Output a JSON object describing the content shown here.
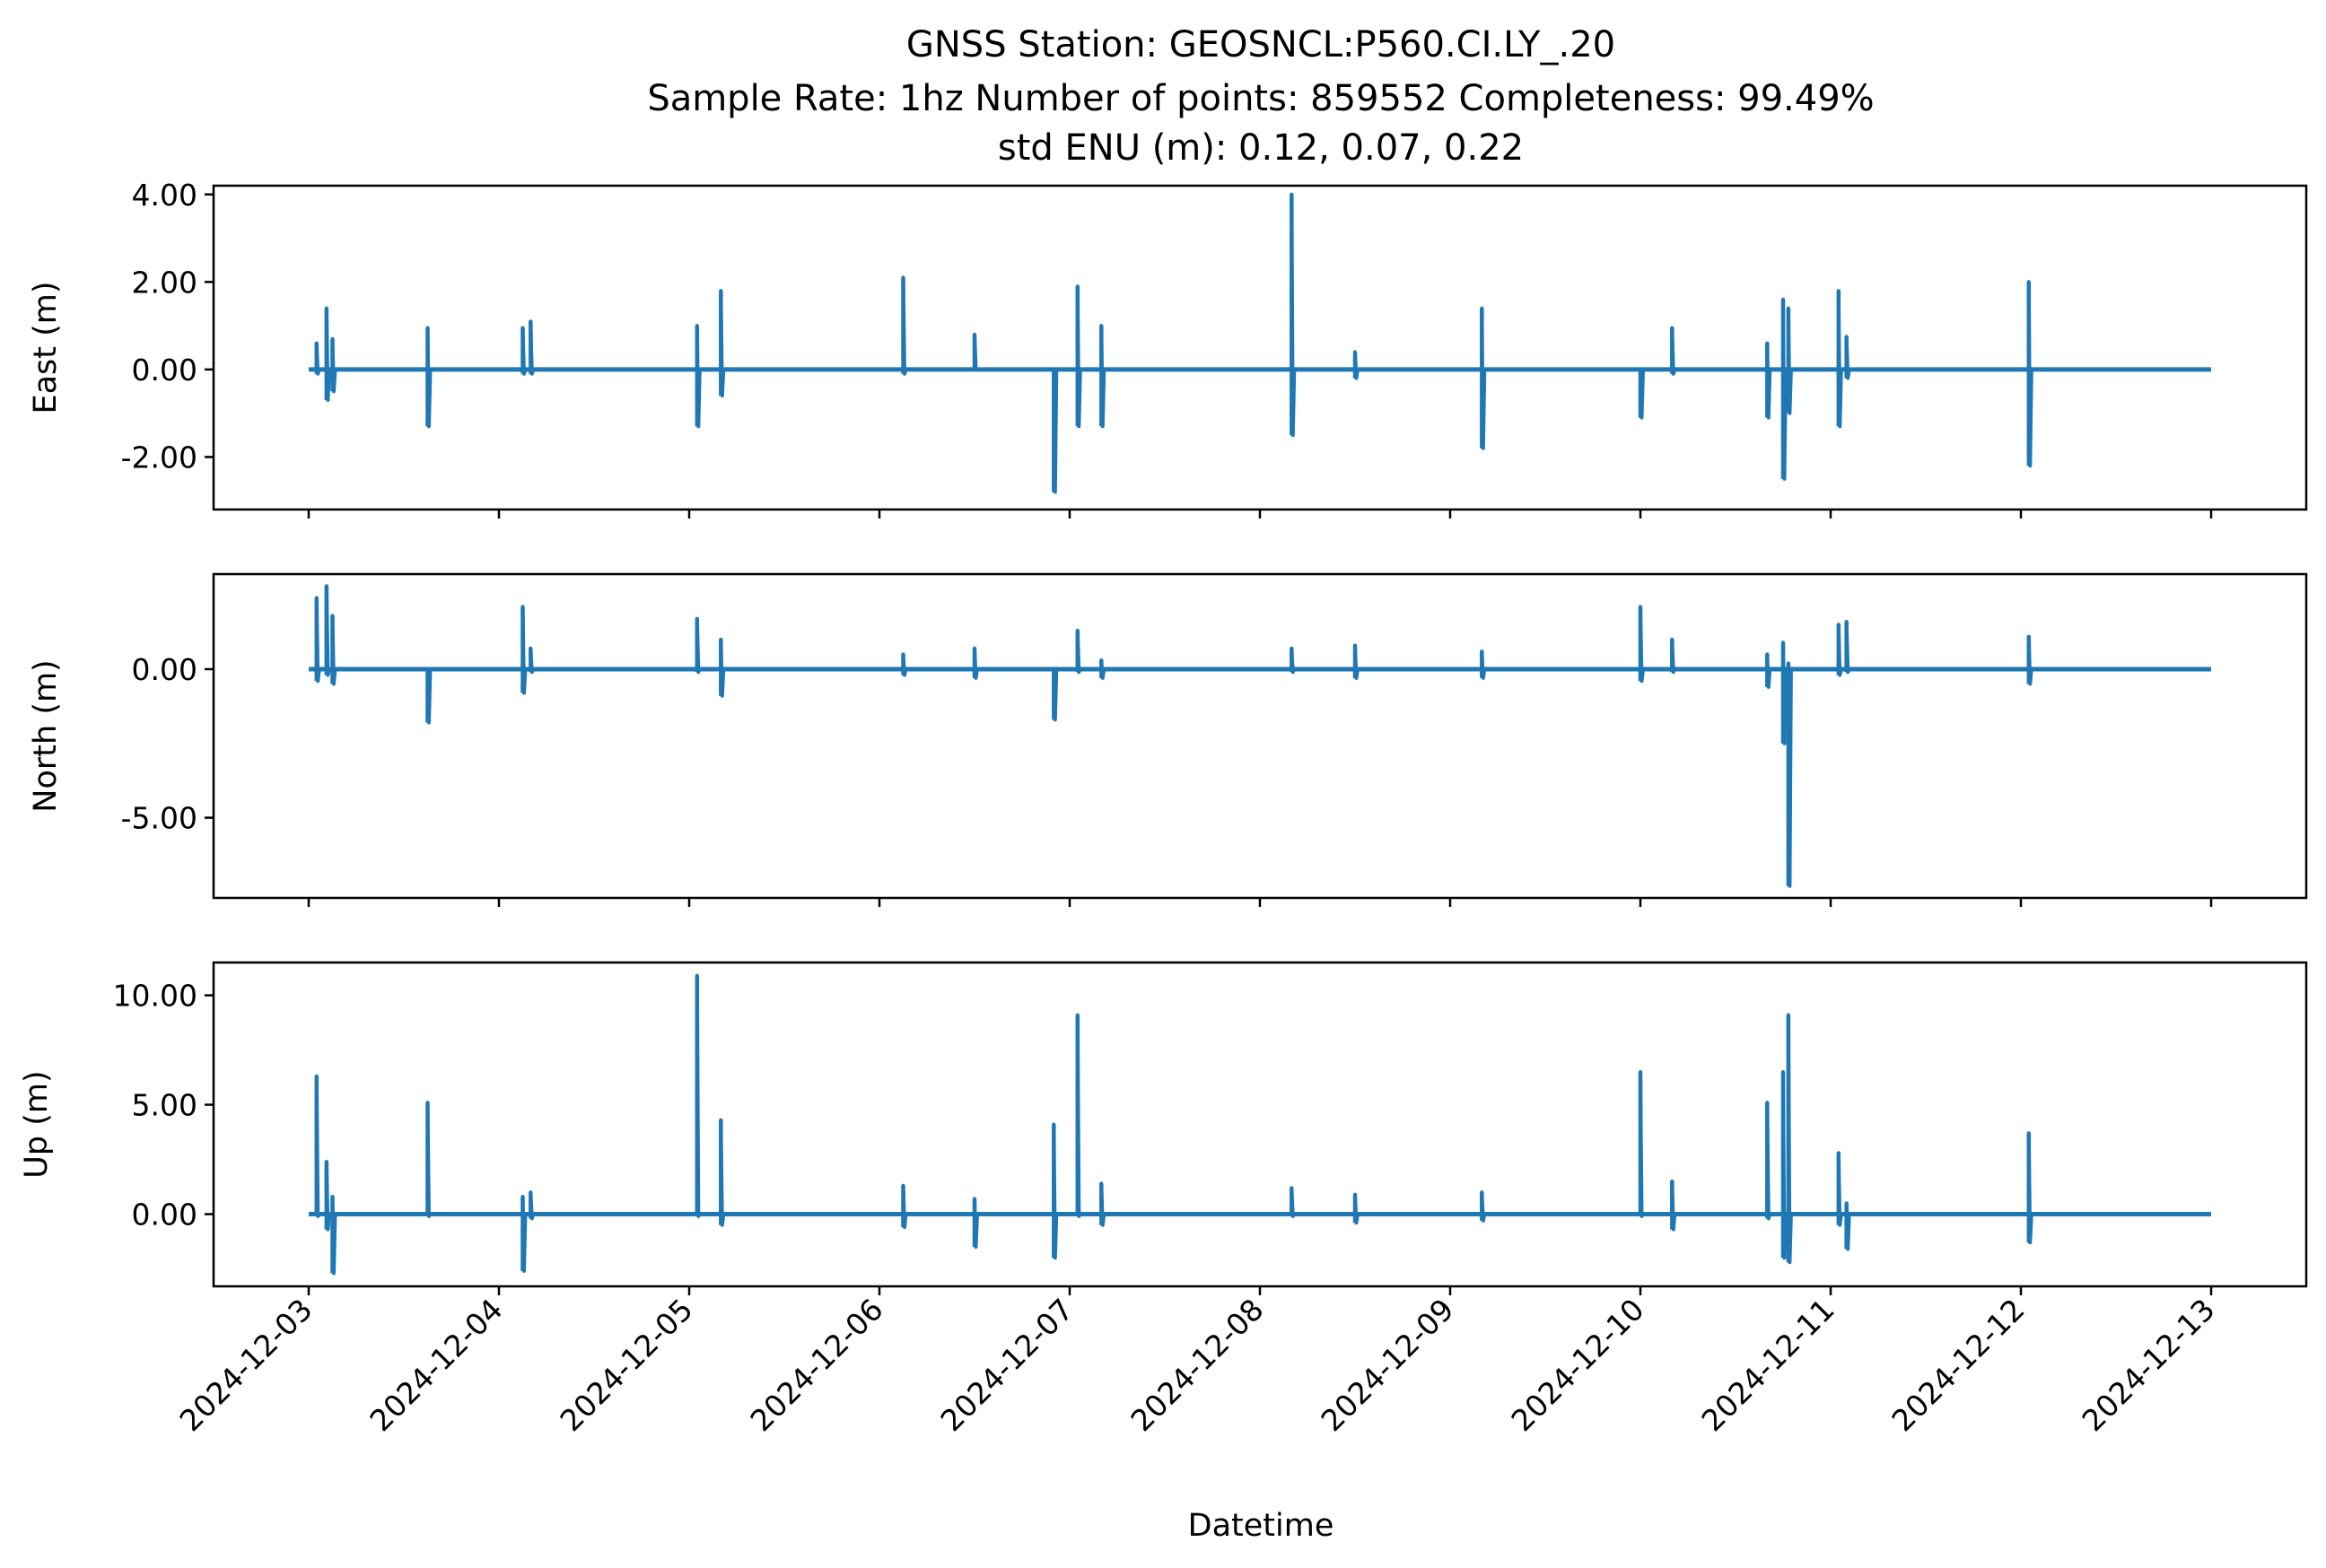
{
  "figure": {
    "title_lines": [
      "GNSS Station: GEOSNCL:P560.CI.LY_.20",
      "Sample Rate: 1hz   Number of points: 859552    Completeness:  99.49%",
      "std ENU (m):  0.12, 0.07, 0.22"
    ],
    "xlabel": "Datetime",
    "series_color": "#1f77b4"
  },
  "chart_data": [
    {
      "type": "line",
      "ylabel": "East (m)",
      "series": [
        {
          "color": "#1f77b4"
        }
      ],
      "xlim": [
        "2024-12-02T12:00",
        "2024-12-13T12:00"
      ],
      "ylim": [
        -3.2,
        4.2
      ],
      "yticks": [
        4.0,
        2.0,
        0.0,
        -2.0
      ],
      "yticklabels": [
        "4.00",
        "2.00",
        "0.00",
        "-2.00"
      ],
      "xtick_labels_visible": false,
      "spikes": [
        {
          "t": "2024-12-03T01:00",
          "min": -0.1,
          "max": 0.6
        },
        {
          "t": "2024-12-03T02:15",
          "min": -0.7,
          "max": 1.4
        },
        {
          "t": "2024-12-03T03:00",
          "min": -0.5,
          "max": 0.7
        },
        {
          "t": "2024-12-03T15:00",
          "min": -1.3,
          "max": 0.95
        },
        {
          "t": "2024-12-04T03:00",
          "min": -0.1,
          "max": 0.95
        },
        {
          "t": "2024-12-04T04:00",
          "min": -0.1,
          "max": 1.1
        },
        {
          "t": "2024-12-05T01:00",
          "min": -1.3,
          "max": 1.0
        },
        {
          "t": "2024-12-05T04:00",
          "min": -0.6,
          "max": 1.8
        },
        {
          "t": "2024-12-06T03:00",
          "min": -0.1,
          "max": 2.1
        },
        {
          "t": "2024-12-06T12:00",
          "min": 0.0,
          "max": 0.8
        },
        {
          "t": "2024-12-06T22:00",
          "min": -2.8,
          "max": 0.0
        },
        {
          "t": "2024-12-07T01:00",
          "min": -1.3,
          "max": 1.9
        },
        {
          "t": "2024-12-07T04:00",
          "min": -1.3,
          "max": 1.0
        },
        {
          "t": "2024-12-08T04:00",
          "min": -1.5,
          "max": 4.0
        },
        {
          "t": "2024-12-08T12:00",
          "min": -0.2,
          "max": 0.4
        },
        {
          "t": "2024-12-09T04:00",
          "min": -1.8,
          "max": 1.4
        },
        {
          "t": "2024-12-10T00:00",
          "min": -1.1,
          "max": 0.0
        },
        {
          "t": "2024-12-10T04:00",
          "min": -0.1,
          "max": 0.95
        },
        {
          "t": "2024-12-10T16:00",
          "min": -1.1,
          "max": 0.6
        },
        {
          "t": "2024-12-10T18:00",
          "min": -2.5,
          "max": 1.6
        },
        {
          "t": "2024-12-10T18:40",
          "min": -1.0,
          "max": 1.4
        },
        {
          "t": "2024-12-11T01:00",
          "min": -1.3,
          "max": 1.8
        },
        {
          "t": "2024-12-11T02:00",
          "min": -0.2,
          "max": 0.75
        },
        {
          "t": "2024-12-12T01:00",
          "min": -2.2,
          "max": 2.0
        }
      ]
    },
    {
      "type": "line",
      "ylabel": "North (m)",
      "series": [
        {
          "color": "#1f77b4"
        }
      ],
      "xlim": [
        "2024-12-02T12:00",
        "2024-12-13T12:00"
      ],
      "ylim": [
        -7.7,
        3.2
      ],
      "yticks": [
        0.0,
        -5.0
      ],
      "yticklabels": [
        "0.00",
        "-5.00"
      ],
      "xtick_labels_visible": false,
      "spikes": [
        {
          "t": "2024-12-03T01:00",
          "min": -0.4,
          "max": 2.4
        },
        {
          "t": "2024-12-03T02:15",
          "min": -0.2,
          "max": 2.8
        },
        {
          "t": "2024-12-03T03:00",
          "min": -0.5,
          "max": 1.8
        },
        {
          "t": "2024-12-03T15:00",
          "min": -1.8,
          "max": 0.0
        },
        {
          "t": "2024-12-04T03:00",
          "min": -0.8,
          "max": 2.1
        },
        {
          "t": "2024-12-04T04:00",
          "min": -0.1,
          "max": 0.7
        },
        {
          "t": "2024-12-05T01:00",
          "min": -0.1,
          "max": 1.7
        },
        {
          "t": "2024-12-05T04:00",
          "min": -0.9,
          "max": 1.0
        },
        {
          "t": "2024-12-06T03:00",
          "min": -0.2,
          "max": 0.5
        },
        {
          "t": "2024-12-06T12:00",
          "min": -0.3,
          "max": 0.7
        },
        {
          "t": "2024-12-06T22:00",
          "min": -1.7,
          "max": 0.0
        },
        {
          "t": "2024-12-07T01:00",
          "min": -0.1,
          "max": 1.3
        },
        {
          "t": "2024-12-07T04:00",
          "min": -0.3,
          "max": 0.3
        },
        {
          "t": "2024-12-08T04:00",
          "min": -0.1,
          "max": 0.7
        },
        {
          "t": "2024-12-08T12:00",
          "min": -0.3,
          "max": 0.8
        },
        {
          "t": "2024-12-09T04:00",
          "min": -0.3,
          "max": 0.6
        },
        {
          "t": "2024-12-10T00:00",
          "min": -0.4,
          "max": 2.1
        },
        {
          "t": "2024-12-10T04:00",
          "min": -0.1,
          "max": 1.0
        },
        {
          "t": "2024-12-10T16:00",
          "min": -0.6,
          "max": 0.5
        },
        {
          "t": "2024-12-10T18:00",
          "min": -2.5,
          "max": 0.9
        },
        {
          "t": "2024-12-10T18:40",
          "min": -7.3,
          "max": 0.2
        },
        {
          "t": "2024-12-11T01:00",
          "min": -0.2,
          "max": 1.5
        },
        {
          "t": "2024-12-11T02:00",
          "min": -0.1,
          "max": 1.6
        },
        {
          "t": "2024-12-12T01:00",
          "min": -0.5,
          "max": 1.1
        }
      ]
    },
    {
      "type": "line",
      "ylabel": "Up (m)",
      "series": [
        {
          "color": "#1f77b4"
        }
      ],
      "xlim": [
        "2024-12-02T12:00",
        "2024-12-13T12:00"
      ],
      "ylim": [
        -3.3,
        11.5
      ],
      "yticks": [
        10.0,
        5.0,
        0.0
      ],
      "yticklabels": [
        "10.00",
        "5.00",
        "0.00"
      ],
      "xtick_labels_visible": true,
      "spikes": [
        {
          "t": "2024-12-03T01:00",
          "min": -0.1,
          "max": 6.3
        },
        {
          "t": "2024-12-03T02:15",
          "min": -0.7,
          "max": 2.4
        },
        {
          "t": "2024-12-03T03:00",
          "min": -2.7,
          "max": 0.8
        },
        {
          "t": "2024-12-03T15:00",
          "min": -0.1,
          "max": 5.1
        },
        {
          "t": "2024-12-04T03:00",
          "min": -2.6,
          "max": 0.8
        },
        {
          "t": "2024-12-04T04:00",
          "min": -0.2,
          "max": 1.0
        },
        {
          "t": "2024-12-05T01:00",
          "min": -0.1,
          "max": 10.9
        },
        {
          "t": "2024-12-05T04:00",
          "min": -0.5,
          "max": 4.3
        },
        {
          "t": "2024-12-06T03:00",
          "min": -0.6,
          "max": 1.3
        },
        {
          "t": "2024-12-06T12:00",
          "min": -1.5,
          "max": 0.7
        },
        {
          "t": "2024-12-06T22:00",
          "min": -2.0,
          "max": 4.1
        },
        {
          "t": "2024-12-07T01:00",
          "min": -0.1,
          "max": 9.1
        },
        {
          "t": "2024-12-07T04:00",
          "min": -0.5,
          "max": 1.4
        },
        {
          "t": "2024-12-08T04:00",
          "min": -0.1,
          "max": 1.2
        },
        {
          "t": "2024-12-08T12:00",
          "min": -0.4,
          "max": 0.9
        },
        {
          "t": "2024-12-09T04:00",
          "min": -0.3,
          "max": 1.0
        },
        {
          "t": "2024-12-10T00:00",
          "min": -0.1,
          "max": 6.5
        },
        {
          "t": "2024-12-10T04:00",
          "min": -0.7,
          "max": 1.5
        },
        {
          "t": "2024-12-10T16:00",
          "min": -0.2,
          "max": 5.1
        },
        {
          "t": "2024-12-10T18:00",
          "min": -2.0,
          "max": 6.5
        },
        {
          "t": "2024-12-10T18:40",
          "min": -2.2,
          "max": 9.1
        },
        {
          "t": "2024-12-11T01:00",
          "min": -0.5,
          "max": 2.8
        },
        {
          "t": "2024-12-11T02:00",
          "min": -1.6,
          "max": 0.5
        },
        {
          "t": "2024-12-12T01:00",
          "min": -1.3,
          "max": 3.7
        }
      ]
    }
  ],
  "x_axis": {
    "ticks": [
      "2024-12-03",
      "2024-12-04",
      "2024-12-05",
      "2024-12-06",
      "2024-12-07",
      "2024-12-08",
      "2024-12-09",
      "2024-12-10",
      "2024-12-11",
      "2024-12-12",
      "2024-12-13"
    ],
    "data_range": [
      "2024-12-03T00:00",
      "2024-12-13T00:00"
    ]
  }
}
